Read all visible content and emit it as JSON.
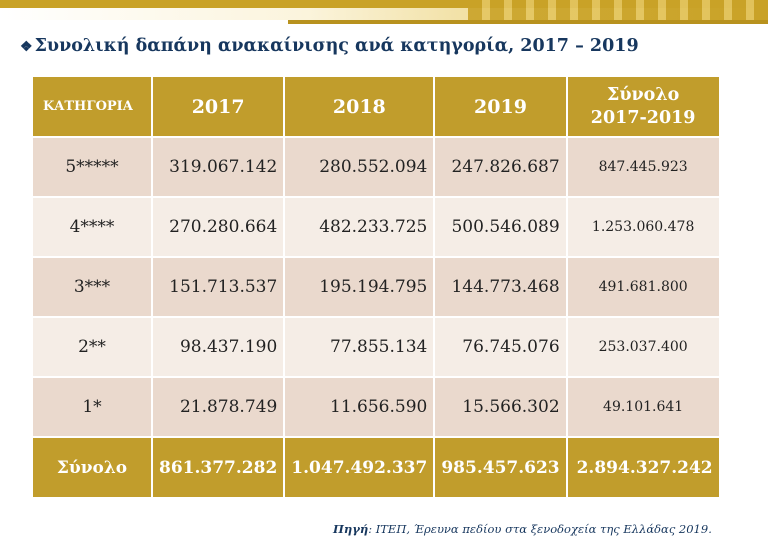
{
  "title": "Συνολική δαπάνη ανακαίνισης ανά κατηγορία, 2017 – 2019",
  "title_bullet_icon": "diamond-bullet-icon",
  "header": {
    "category": "ΚΑΤΗΓΟΡΙΑ",
    "y2017": "2017",
    "y2018": "2018",
    "y2019": "2019",
    "total_line1": "Σύνολο",
    "total_line2": "2017-2019"
  },
  "rows": [
    {
      "category": "5*****",
      "y2017": "319.067.142",
      "y2018": "280.552.094",
      "y2019": "247.826.687",
      "total": "847.445.923"
    },
    {
      "category": "4****",
      "y2017": "270.280.664",
      "y2018": "482.233.725",
      "y2019": "500.546.089",
      "total": "1.253.060.478"
    },
    {
      "category": "3***",
      "y2017": "151.713.537",
      "y2018": "195.194.795",
      "y2019": "144.773.468",
      "total": "491.681.800"
    },
    {
      "category": "2**",
      "y2017": "98.437.190",
      "y2018": "77.855.134",
      "y2019": "76.745.076",
      "total": "253.037.400"
    },
    {
      "category": "1*",
      "y2017": "21.878.749",
      "y2018": "11.656.590",
      "y2019": "15.566.302",
      "total": "49.101.641"
    }
  ],
  "footer": {
    "label": "Σύνολο",
    "y2017": "861.377.282",
    "y2018": "1.047.492.337",
    "y2019": "985.457.623",
    "total": "2.894.327.242"
  },
  "source": {
    "label": "Πηγή",
    "text": ": ΙΤΕΠ, Έρευνα πεδίου στα ξενοδοχεία της Ελλάδας 2019."
  },
  "colors": {
    "gold": "#c19d2c",
    "row_dark": "#ead9cd",
    "row_light": "#f5ede6",
    "title": "#17375e"
  }
}
